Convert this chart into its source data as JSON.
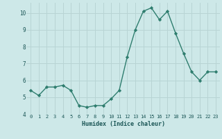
{
  "xlabel": "Humidex (Indice chaleur)",
  "x": [
    0,
    1,
    2,
    3,
    4,
    5,
    6,
    7,
    8,
    9,
    10,
    11,
    12,
    13,
    14,
    15,
    16,
    17,
    18,
    19,
    20,
    21,
    22,
    23
  ],
  "y": [
    5.4,
    5.1,
    5.6,
    5.6,
    5.7,
    5.4,
    4.5,
    4.4,
    4.5,
    4.5,
    4.9,
    5.4,
    7.4,
    9.0,
    10.1,
    10.3,
    9.6,
    10.1,
    8.8,
    7.6,
    6.5,
    6.0,
    6.5,
    6.5
  ],
  "ylim": [
    4,
    10.6
  ],
  "xlim": [
    -0.5,
    23.5
  ],
  "yticks": [
    4,
    5,
    6,
    7,
    8,
    9,
    10
  ],
  "xticks": [
    0,
    1,
    2,
    3,
    4,
    5,
    6,
    7,
    8,
    9,
    10,
    11,
    12,
    13,
    14,
    15,
    16,
    17,
    18,
    19,
    20,
    21,
    22,
    23
  ],
  "line_color": "#2e7d6e",
  "marker_color": "#2e7d6e",
  "bg_color": "#cde8e8",
  "grid_color": "#b8d4d4",
  "axis_label_color": "#1a5555",
  "tick_color": "#1a5555"
}
